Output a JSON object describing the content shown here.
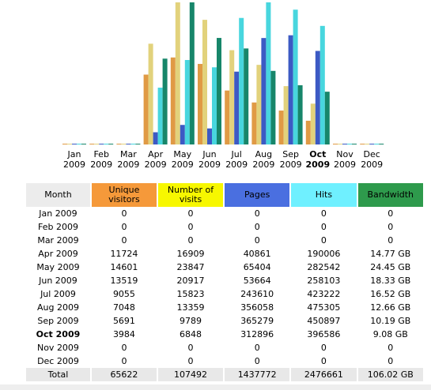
{
  "headers": [
    "Month",
    "Unique visitors",
    "Number of visits",
    "Pages",
    "Hits",
    "Bandwidth"
  ],
  "colors": [
    "#f5993a",
    "#f7f700",
    "#4a6fe0",
    "#6ff0ff",
    "#2e9a4c"
  ],
  "bar_colors": [
    "#e09a45",
    "#e2d27c",
    "#3c5ac4",
    "#48d6de",
    "#17866a"
  ],
  "current_month": 9,
  "rows": [
    {
      "month": "Jan",
      "year": "2009",
      "visitors": 0,
      "visits": 0,
      "pages": 0,
      "hits": 0,
      "bandwidth": 0,
      "bandwidth_label": "0"
    },
    {
      "month": "Feb",
      "year": "2009",
      "visitors": 0,
      "visits": 0,
      "pages": 0,
      "hits": 0,
      "bandwidth": 0,
      "bandwidth_label": "0"
    },
    {
      "month": "Mar",
      "year": "2009",
      "visitors": 0,
      "visits": 0,
      "pages": 0,
      "hits": 0,
      "bandwidth": 0,
      "bandwidth_label": "0"
    },
    {
      "month": "Apr",
      "year": "2009",
      "visitors": 11724,
      "visits": 16909,
      "pages": 40861,
      "hits": 190006,
      "bandwidth": 14.77,
      "bandwidth_label": "14.77 GB"
    },
    {
      "month": "May",
      "year": "2009",
      "visitors": 14601,
      "visits": 23847,
      "pages": 65404,
      "hits": 282542,
      "bandwidth": 24.45,
      "bandwidth_label": "24.45 GB"
    },
    {
      "month": "Jun",
      "year": "2009",
      "visitors": 13519,
      "visits": 20917,
      "pages": 53664,
      "hits": 258103,
      "bandwidth": 18.33,
      "bandwidth_label": "18.33 GB"
    },
    {
      "month": "Jul",
      "year": "2009",
      "visitors": 9055,
      "visits": 15823,
      "pages": 243610,
      "hits": 423222,
      "bandwidth": 16.52,
      "bandwidth_label": "16.52 GB"
    },
    {
      "month": "Aug",
      "year": "2009",
      "visitors": 7048,
      "visits": 13359,
      "pages": 356058,
      "hits": 475305,
      "bandwidth": 12.66,
      "bandwidth_label": "12.66 GB"
    },
    {
      "month": "Sep",
      "year": "2009",
      "visitors": 5691,
      "visits": 9789,
      "pages": 365279,
      "hits": 450897,
      "bandwidth": 10.19,
      "bandwidth_label": "10.19 GB"
    },
    {
      "month": "Oct",
      "year": "2009",
      "visitors": 3984,
      "visits": 6848,
      "pages": 312896,
      "hits": 396586,
      "bandwidth": 9.08,
      "bandwidth_label": "9.08 GB"
    },
    {
      "month": "Nov",
      "year": "2009",
      "visitors": 0,
      "visits": 0,
      "pages": 0,
      "hits": 0,
      "bandwidth": 0,
      "bandwidth_label": "0"
    },
    {
      "month": "Dec",
      "year": "2009",
      "visitors": 0,
      "visits": 0,
      "pages": 0,
      "hits": 0,
      "bandwidth": 0,
      "bandwidth_label": "0"
    }
  ],
  "total": {
    "label": "Total",
    "visitors": 65622,
    "visits": 107492,
    "pages": 1437772,
    "hits": 2476661,
    "bandwidth": 106.02,
    "bandwidth_label": "106.02 GB"
  }
}
